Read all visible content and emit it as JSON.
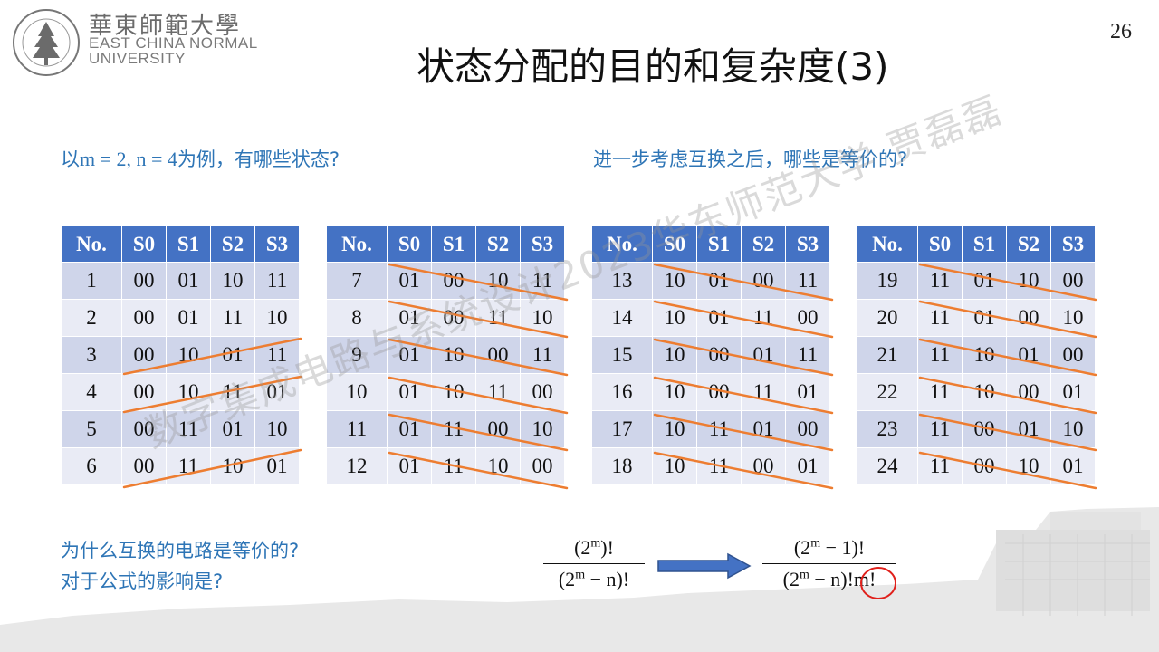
{
  "header": {
    "logo_cn": "華東師範大學",
    "logo_en_line1": "EAST CHINA NORMAL",
    "logo_en_line2": "UNIVERSITY",
    "page_number": "26",
    "title": "状态分配的目的和复杂度(3)"
  },
  "questions": {
    "left_prefix": "以",
    "left_math": "m = 2, n = 4",
    "left_suffix": "为例，有哪些状态?",
    "right": "进一步考虑互换之后，哪些是等价的?",
    "bottom_line1": "为什么互换的电路是等价的?",
    "bottom_line2": "对于公式的影响是?"
  },
  "table_headers": [
    "No.",
    "S0",
    "S1",
    "S2",
    "S3"
  ],
  "tables": [
    [
      [
        "1",
        "00",
        "01",
        "10",
        "11"
      ],
      [
        "2",
        "00",
        "01",
        "11",
        "10"
      ],
      [
        "3",
        "00",
        "10",
        "01",
        "11"
      ],
      [
        "4",
        "00",
        "10",
        "11",
        "01"
      ],
      [
        "5",
        "00",
        "11",
        "01",
        "10"
      ],
      [
        "6",
        "00",
        "11",
        "10",
        "01"
      ]
    ],
    [
      [
        "7",
        "01",
        "00",
        "10",
        "11"
      ],
      [
        "8",
        "01",
        "00",
        "11",
        "10"
      ],
      [
        "9",
        "01",
        "10",
        "00",
        "11"
      ],
      [
        "10",
        "01",
        "10",
        "11",
        "00"
      ],
      [
        "11",
        "01",
        "11",
        "00",
        "10"
      ],
      [
        "12",
        "01",
        "11",
        "10",
        "00"
      ]
    ],
    [
      [
        "13",
        "10",
        "01",
        "00",
        "11"
      ],
      [
        "14",
        "10",
        "01",
        "11",
        "00"
      ],
      [
        "15",
        "10",
        "00",
        "01",
        "11"
      ],
      [
        "16",
        "10",
        "00",
        "11",
        "01"
      ],
      [
        "17",
        "10",
        "11",
        "01",
        "00"
      ],
      [
        "18",
        "10",
        "11",
        "00",
        "01"
      ]
    ],
    [
      [
        "19",
        "11",
        "01",
        "10",
        "00"
      ],
      [
        "20",
        "11",
        "01",
        "00",
        "10"
      ],
      [
        "21",
        "11",
        "10",
        "01",
        "00"
      ],
      [
        "22",
        "11",
        "10",
        "00",
        "01"
      ],
      [
        "23",
        "11",
        "00",
        "01",
        "10"
      ],
      [
        "24",
        "11",
        "00",
        "10",
        "01"
      ]
    ]
  ],
  "formula_left": {
    "num": "(2",
    "num_sup": "m",
    "num_end": ")!",
    "den": "(2",
    "den_sup": "m",
    "den_end": " − n)!"
  },
  "formula_right": {
    "num": "(2",
    "num_sup": "m",
    "num_end": " − 1)!",
    "den": "(2",
    "den_sup": "m",
    "den_end": " − n)!",
    "den_highlight": "m!"
  },
  "watermark": "数字集成电路与系统设计2023华东师范大学 贾磊磊",
  "colors": {
    "accent_blue": "#2e75b6",
    "header_blue": "#4472c4",
    "strike_orange": "#ed7d31",
    "circle_red": "#e0201b"
  }
}
